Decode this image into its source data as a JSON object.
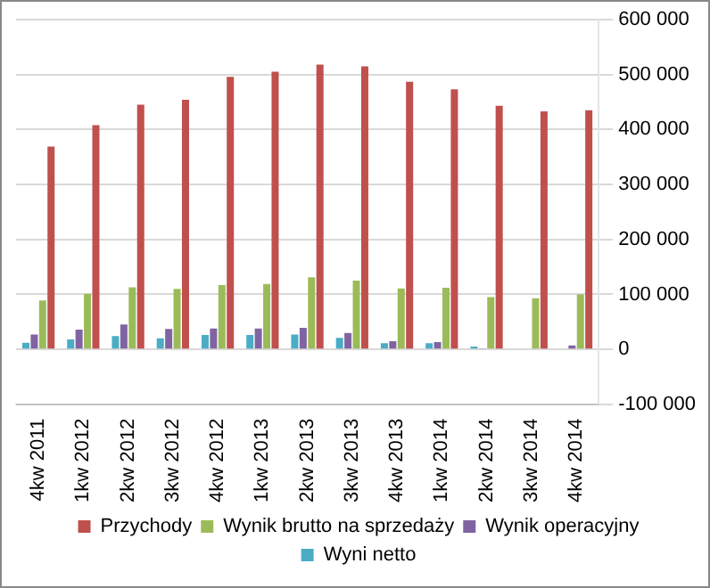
{
  "chart_data": {
    "type": "bar",
    "categories": [
      "4kw 2011",
      "1kw 2012",
      "2kw 2012",
      "3kw 2012",
      "4kw 2012",
      "1kw 2013",
      "2kw 2013",
      "3kw 2013",
      "4kw 2013",
      "1kw 2014",
      "2kw 2014",
      "3kw 2014",
      "4kw 2014"
    ],
    "series": [
      {
        "name": "Wyni netto",
        "color": "#4bacc6",
        "values": [
          12000,
          18000,
          24000,
          20000,
          26000,
          26000,
          27000,
          21000,
          11000,
          11000,
          5000,
          null,
          0
        ]
      },
      {
        "name": "Wynik operacyjny",
        "color": "#8064a2",
        "values": [
          27000,
          36000,
          45000,
          37000,
          38000,
          38000,
          39000,
          30000,
          15000,
          13000,
          1000,
          null,
          7000
        ]
      },
      {
        "name": "Wynik brutto na sprzedaży",
        "color": "#9bbb59",
        "values": [
          89000,
          101000,
          113000,
          110000,
          117000,
          119000,
          131000,
          125000,
          111000,
          112000,
          95000,
          93000,
          100000
        ]
      },
      {
        "name": "Przychody",
        "color": "#c0504d",
        "values": [
          369000,
          408000,
          445000,
          454000,
          496000,
          505000,
          518000,
          515000,
          487000,
          473000,
          443000,
          433000,
          435000
        ]
      }
    ],
    "ylim": [
      -100000,
      600000
    ],
    "yticks": [
      {
        "value": -100000,
        "label": "-100 000"
      },
      {
        "value": 0,
        "label": "0"
      },
      {
        "value": 100000,
        "label": "100 000"
      },
      {
        "value": 200000,
        "label": "200 000"
      },
      {
        "value": 300000,
        "label": "300 000"
      },
      {
        "value": 400000,
        "label": "400 000"
      },
      {
        "value": 500000,
        "label": "500 000"
      },
      {
        "value": 600000,
        "label": "600 000"
      }
    ],
    "grid": "y",
    "legend": "bottom"
  }
}
